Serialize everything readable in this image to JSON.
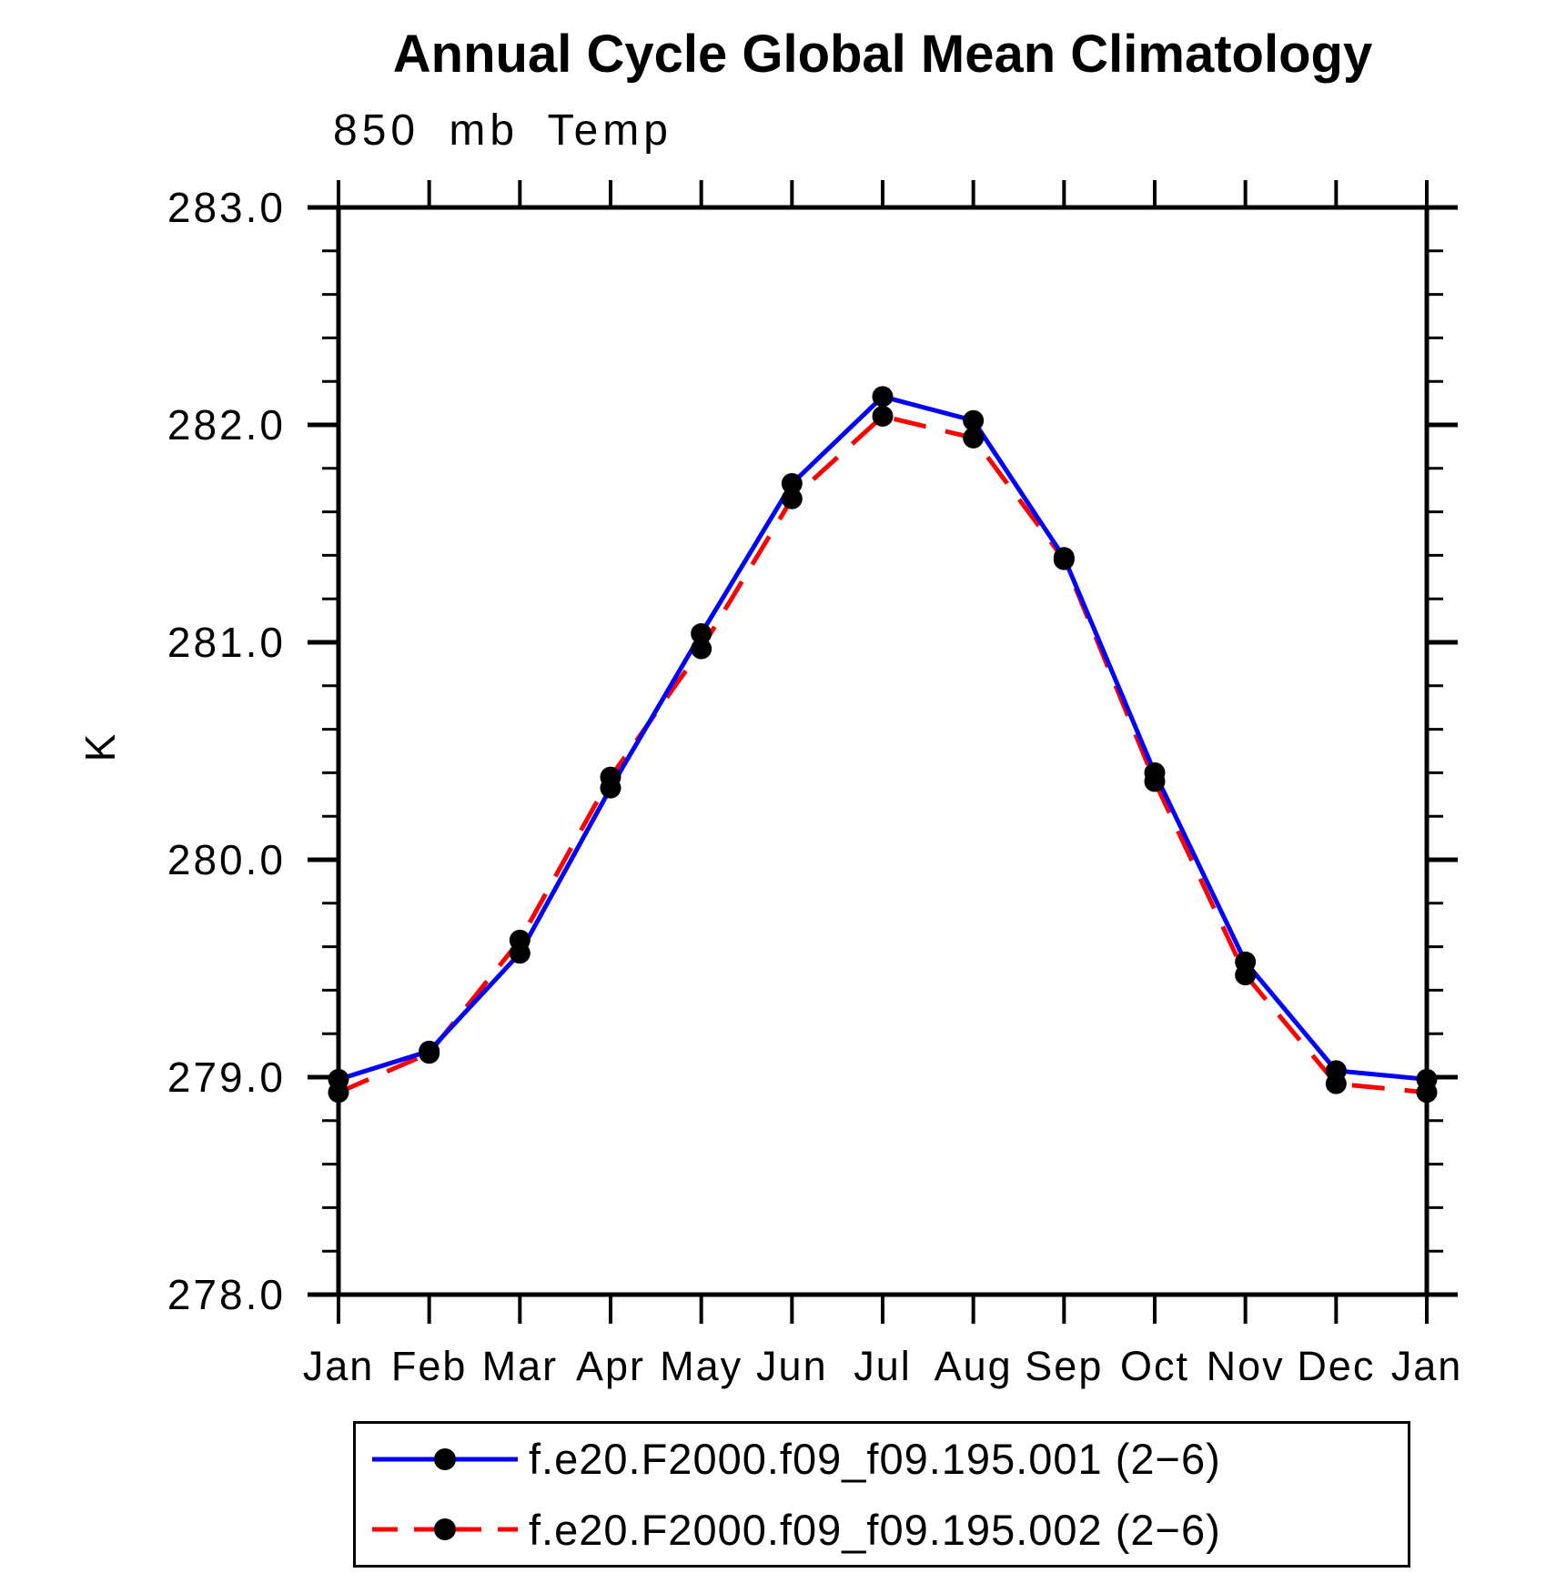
{
  "title": "Annual Cycle Global Mean Climatology",
  "subtitle": "850 mb Temp",
  "chart_data": {
    "type": "line",
    "title": "Annual Cycle Global Mean Climatology",
    "subtitle": "850 mb Temp",
    "xlabel": "",
    "ylabel": "K",
    "categories": [
      "Jan",
      "Feb",
      "Mar",
      "Apr",
      "May",
      "Jun",
      "Jul",
      "Aug",
      "Sep",
      "Oct",
      "Nov",
      "Dec",
      "Jan"
    ],
    "ylim": [
      278.0,
      283.0
    ],
    "y_major_tick_labels": [
      "283.0",
      "282.0",
      "281.0",
      "280.0",
      "279.0",
      "278.0"
    ],
    "y_minor_step": 0.2,
    "grid": false,
    "legend_position": "bottom",
    "frame_color": "#000000",
    "marker_shape": "filled-circle",
    "marker_color": "#000000",
    "series": [
      {
        "name": "f.e20.F2000.f09_f09.195.001 (2−6)",
        "color": "#0000ff",
        "style": "solid",
        "values": [
          278.99,
          279.12,
          279.57,
          280.33,
          281.04,
          281.73,
          282.13,
          282.02,
          281.39,
          280.4,
          279.53,
          279.03,
          278.99
        ]
      },
      {
        "name": "f.e20.F2000.f09_f09.195.002 (2−6)",
        "color": "#ff0000",
        "style": "dashed",
        "values": [
          278.93,
          279.11,
          279.63,
          280.38,
          280.97,
          281.66,
          282.04,
          281.94,
          281.38,
          280.36,
          279.47,
          278.97,
          278.93
        ]
      }
    ]
  }
}
